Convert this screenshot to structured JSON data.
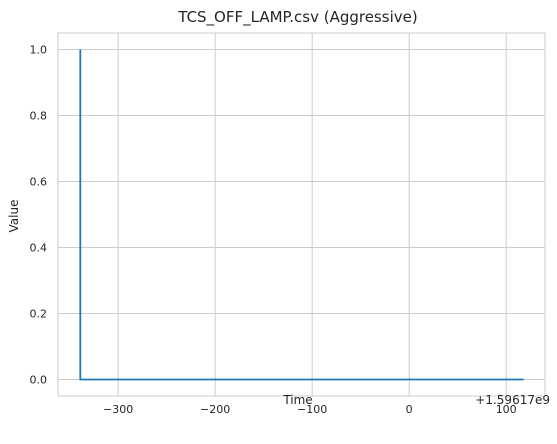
{
  "chart_data": {
    "type": "line",
    "title": "TCS_OFF_LAMP.csv (Aggressive)",
    "xlabel": "Time",
    "ylabel": "Value",
    "x_offset_label": "+1.59617e9",
    "xlim": [
      -362,
      140
    ],
    "ylim": [
      -0.05,
      1.05
    ],
    "xticks": [
      -300,
      -200,
      -100,
      0,
      100
    ],
    "xtick_labels": [
      "−300",
      "−200",
      "−100",
      "0",
      "100"
    ],
    "yticks": [
      0.0,
      0.2,
      0.4,
      0.6,
      0.8,
      1.0
    ],
    "ytick_labels": [
      "0.0",
      "0.2",
      "0.4",
      "0.6",
      "0.8",
      "1.0"
    ],
    "grid": true,
    "colors": {
      "line": "#1f77b4",
      "grid": "#cccccc",
      "spine": "#cccccc"
    },
    "series": [
      {
        "x": [
          -339,
          -339,
          118
        ],
        "values": [
          1,
          0,
          0
        ]
      }
    ]
  }
}
